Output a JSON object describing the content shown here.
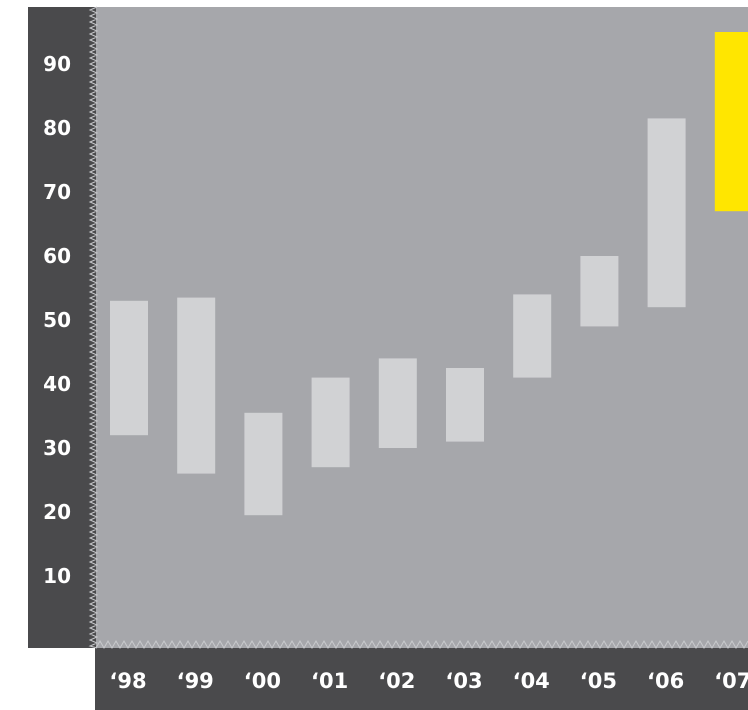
{
  "chart_data": {
    "type": "bar",
    "subtype": "floating-range",
    "title": "",
    "xlabel": "",
    "ylabel": "",
    "categories": [
      "‘98",
      "‘99",
      "‘00",
      "‘01",
      "‘02",
      "‘03",
      "‘04",
      "‘05",
      "‘06",
      "‘07"
    ],
    "series": [
      {
        "ranges": [
          [
            32,
            53
          ],
          [
            26,
            53.5
          ],
          [
            19.5,
            35.5
          ],
          [
            27,
            41
          ],
          [
            30,
            44
          ],
          [
            31,
            42.5
          ],
          [
            41,
            54
          ],
          [
            49,
            60
          ],
          [
            52,
            81.5
          ],
          [
            67,
            95
          ]
        ],
        "colors": [
          "#d1d2d4",
          "#d1d2d4",
          "#d1d2d4",
          "#d1d2d4",
          "#d1d2d4",
          "#d1d2d4",
          "#d1d2d4",
          "#d1d2d4",
          "#d1d2d4",
          "#ffe600"
        ]
      }
    ],
    "y_ticks": [
      "10",
      "20",
      "30",
      "40",
      "50",
      "60",
      "70",
      "80",
      "90"
    ],
    "ylim": [
      0,
      100
    ],
    "grid": false,
    "legend": "none",
    "colors": {
      "plot_background": "#a6a7ab",
      "axis_background": "#4a4a4c",
      "bar": "#d1d2d4",
      "highlight": "#ffe600",
      "label": "#ffffff"
    }
  }
}
